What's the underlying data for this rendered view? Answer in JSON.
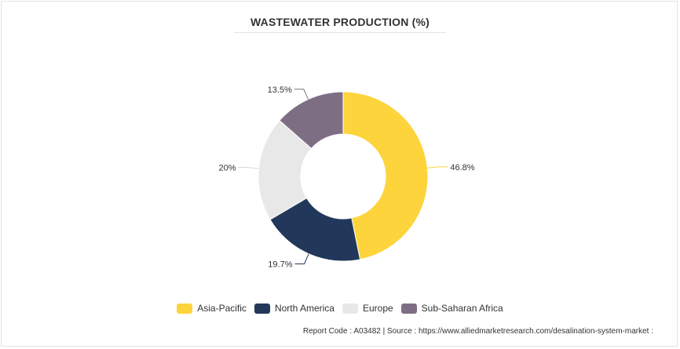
{
  "chart_data": {
    "type": "pie",
    "variant": "donut",
    "title": "WASTEWATER PRODUCTION (%)",
    "categories": [
      "Asia-Pacific",
      "North America",
      "Europe",
      "Sub-Saharan Africa"
    ],
    "values": [
      46.8,
      19.7,
      20,
      13.5
    ],
    "value_labels": [
      "46.8%",
      "19.7%",
      "20%",
      "13.5%"
    ],
    "colors": [
      "#fdd43b",
      "#22385a",
      "#e8e8e8",
      "#7e6e84"
    ],
    "legend_position": "bottom"
  },
  "footer": {
    "text": "Report Code : A03482  |  Source : https://www.alliedmarketresearch.com/desalination-system-market :"
  }
}
